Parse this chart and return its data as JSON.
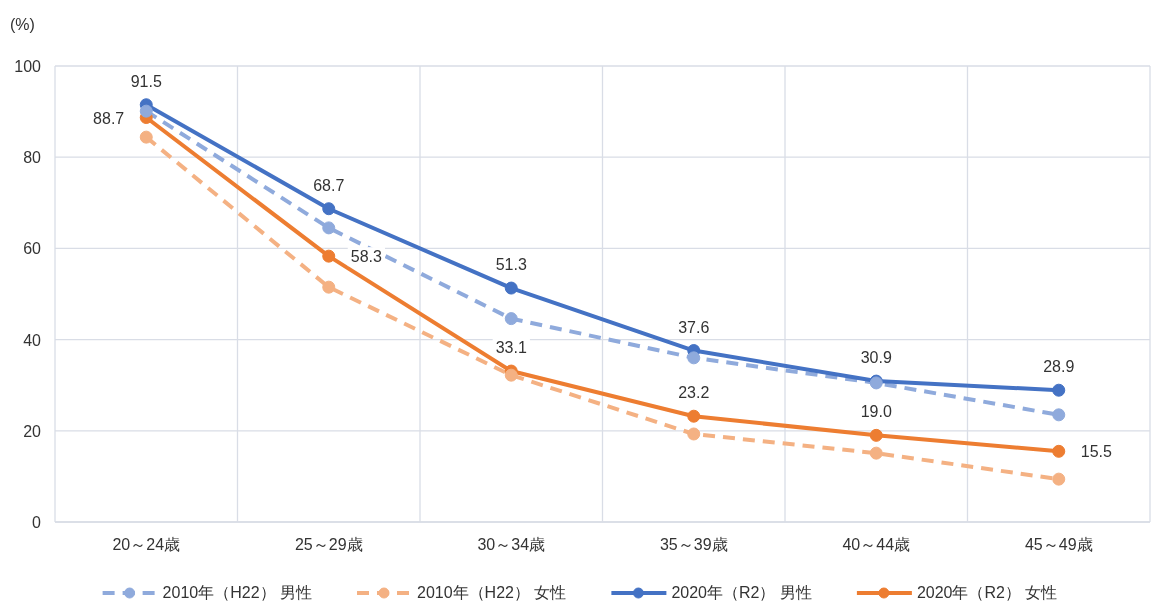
{
  "chart_data": {
    "type": "line",
    "ylabel": "(%)",
    "categories": [
      "20～24歳",
      "25～29歳",
      "30～34歳",
      "35～39歳",
      "40～44歳",
      "45～49歳"
    ],
    "ylim": [
      0,
      100
    ],
    "yticks": [
      0,
      20,
      40,
      60,
      80,
      100
    ],
    "grid": true,
    "legend": "bottom",
    "marker": "circle",
    "series": [
      {
        "name": "2010年（H22） 男性",
        "color": "#8faadc",
        "line_style": "dashed",
        "values": [
          90.1,
          64.5,
          44.6,
          36.0,
          30.5,
          23.5
        ]
      },
      {
        "name": "2010年（H22） 女性",
        "color": "#f4b183",
        "line_style": "dashed",
        "values": [
          84.4,
          51.5,
          32.2,
          19.3,
          15.1,
          9.4
        ]
      },
      {
        "name": "2020年（R2） 男性",
        "color": "#4472c4",
        "line_style": "solid",
        "values": [
          91.5,
          68.7,
          51.3,
          37.6,
          30.9,
          28.9
        ],
        "value_labels": [
          "91.5",
          "68.7",
          "51.3",
          "37.6",
          "30.9",
          "28.9"
        ]
      },
      {
        "name": "2020年（R2） 女性",
        "color": "#ed7d31",
        "line_style": "solid",
        "values": [
          88.7,
          58.3,
          33.1,
          23.2,
          19.0,
          15.5
        ],
        "value_labels": [
          "88.7",
          "58.3",
          "33.1",
          "23.2",
          "19.0",
          "15.5"
        ]
      }
    ]
  }
}
